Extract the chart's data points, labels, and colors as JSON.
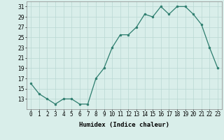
{
  "x": [
    0,
    1,
    2,
    3,
    4,
    5,
    6,
    7,
    8,
    9,
    10,
    11,
    12,
    13,
    14,
    15,
    16,
    17,
    18,
    19,
    20,
    21,
    22,
    23
  ],
  "y": [
    16,
    14,
    13,
    12,
    13,
    13,
    12,
    12,
    17,
    19,
    23,
    25.5,
    25.5,
    27,
    29.5,
    29,
    31,
    29.5,
    31,
    31,
    29.5,
    27.5,
    23,
    19
  ],
  "xlabel": "Humidex (Indice chaleur)",
  "ylim": [
    11,
    32
  ],
  "yticks": [
    13,
    15,
    17,
    19,
    21,
    23,
    25,
    27,
    29,
    31
  ],
  "xlim": [
    -0.5,
    23.5
  ],
  "xtick_labels": [
    "0",
    "1",
    "2",
    "3",
    "4",
    "5",
    "6",
    "7",
    "8",
    "9",
    "10",
    "11",
    "12",
    "13",
    "14",
    "15",
    "16",
    "17",
    "18",
    "19",
    "20",
    "21",
    "22",
    "23"
  ],
  "line_color": "#2d7d6e",
  "marker_color": "#2d7d6e",
  "bg_color": "#d9eeea",
  "grid_color": "#b8d8d2",
  "label_fontsize": 6.5,
  "tick_fontsize": 5.5
}
